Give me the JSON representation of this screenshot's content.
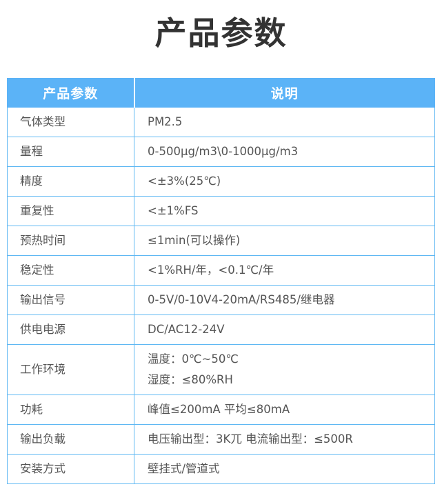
{
  "page": {
    "title": "产品参数"
  },
  "colors": {
    "header_bg": "#5BB3F7",
    "border": "#5FB8F3",
    "title_text": "#333333",
    "body_text": "#555555",
    "header_text": "#FFFFFF"
  },
  "table": {
    "headers": [
      "产品参数",
      "说明"
    ],
    "rows": [
      {
        "param": "气体类型",
        "value": "PM2.5"
      },
      {
        "param": "量程",
        "value": "0-500μg/m3\\0-1000μg/m3"
      },
      {
        "param": "精度",
        "value": "<±3%(25℃)"
      },
      {
        "param": "重复性",
        "value": "<±1%FS"
      },
      {
        "param": "预热时间",
        "value": "≤1min(可以操作)"
      },
      {
        "param": "稳定性",
        "value": "<1%RH/年，<0.1℃/年"
      },
      {
        "param": "输出信号",
        "value": "0-5V/0-10V4-20mA/RS485/继电器"
      },
      {
        "param": "供电电源",
        "value": "DC/AC12-24V"
      },
      {
        "param": "工作环境",
        "value_lines": [
          "温度：0℃~50℃",
          "湿度：≤80%RH"
        ]
      },
      {
        "param": "功耗",
        "value": "峰值≤200mA 平均≤80mA"
      },
      {
        "param": "输出负载",
        "value": "电压输出型：3K兀 电流输出型：≤500R"
      },
      {
        "param": "安装方式",
        "value": "壁挂式/管道式"
      }
    ]
  }
}
